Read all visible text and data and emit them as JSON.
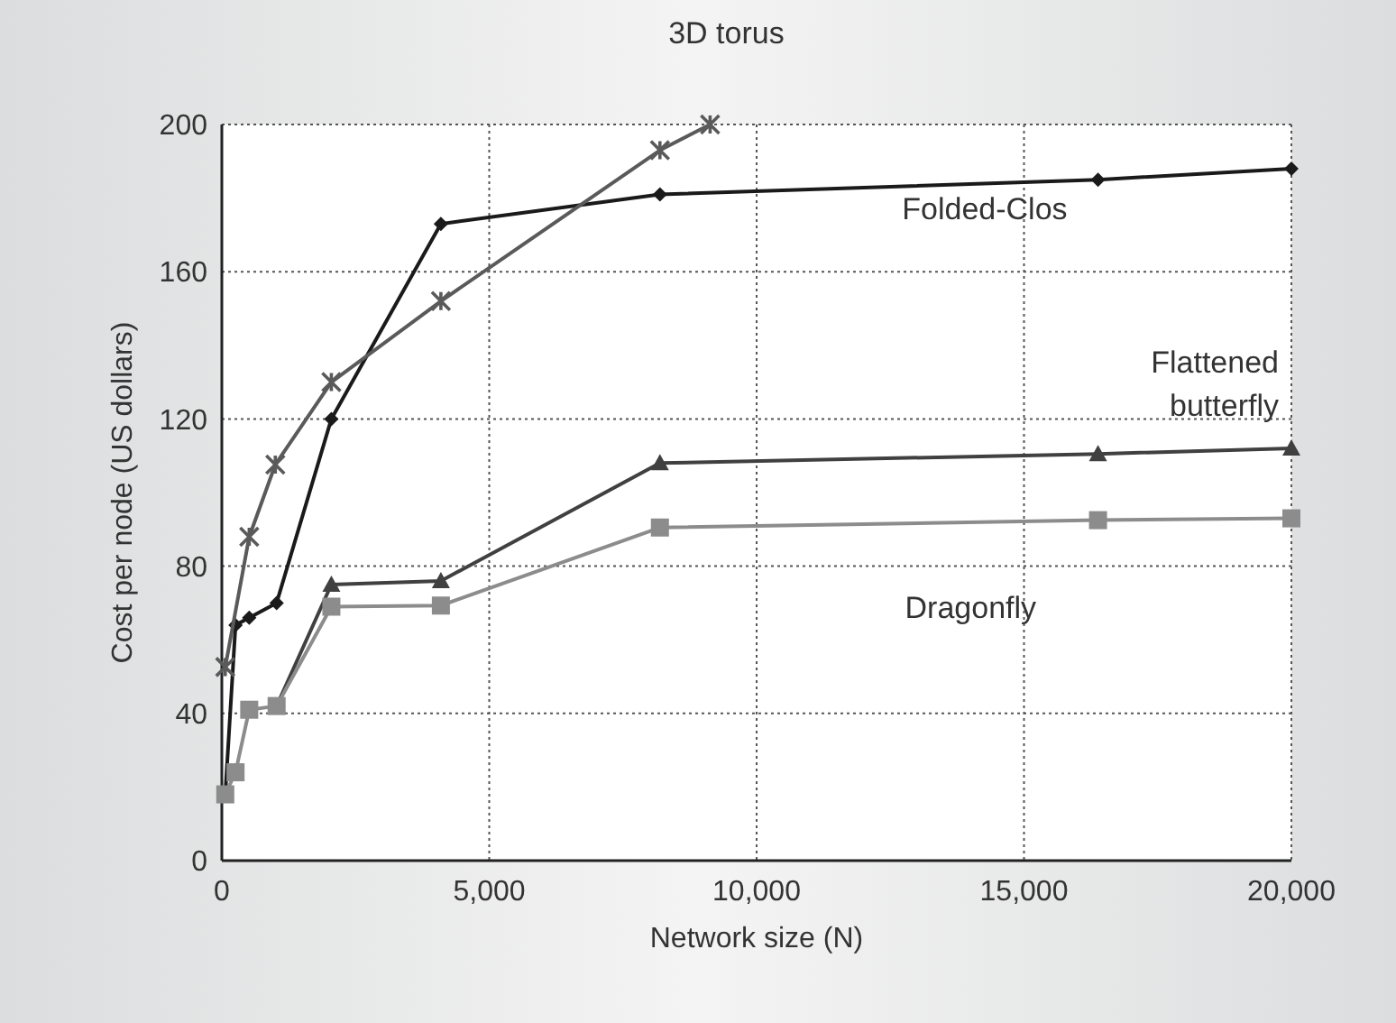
{
  "chart_data": {
    "type": "line",
    "xlabel": "Network size (N)",
    "ylabel": "Cost per node (US dollars)",
    "xlim": [
      0,
      20000
    ],
    "ylim": [
      0,
      200
    ],
    "xticks": [
      0,
      {
        "value": 5000,
        "label": "5,000"
      },
      {
        "value": 10000,
        "label": "10,000"
      },
      {
        "value": 15000,
        "label": "15,000"
      },
      {
        "value": 20000,
        "label": "20,000"
      }
    ],
    "yticks": [
      0,
      40,
      80,
      120,
      160,
      200
    ],
    "grid": true,
    "series": [
      {
        "name": "Folded-Clos",
        "color": "#1a1a1a",
        "marker": "diamond",
        "x": [
          64,
          256,
          512,
          1024,
          2048,
          4096,
          8192,
          16384,
          20000
        ],
        "values": [
          18,
          64,
          66,
          70,
          120,
          173,
          181,
          185,
          188
        ]
      },
      {
        "name": "3D torus",
        "color": "#5a5a5a",
        "marker": "cross",
        "x": [
          64,
          512,
          1000,
          2048,
          4096,
          8192,
          9130
        ],
        "values": [
          52.6,
          88,
          107.6,
          130,
          152,
          193,
          200
        ]
      },
      {
        "name": "Flattened butterfly",
        "color": "#404040",
        "marker": "triangle",
        "x": [
          1024,
          2048,
          4096,
          8192,
          16384,
          20000
        ],
        "values": [
          42,
          75,
          76,
          108,
          110.5,
          112
        ]
      },
      {
        "name": "Dragonfly",
        "color": "#8c8c8c",
        "marker": "square",
        "x": [
          64,
          256,
          512,
          1024,
          2048,
          4096,
          8192,
          16384,
          20000
        ],
        "values": [
          18,
          24,
          41,
          42,
          69,
          69.3,
          90.5,
          92.5,
          93
        ]
      }
    ]
  }
}
